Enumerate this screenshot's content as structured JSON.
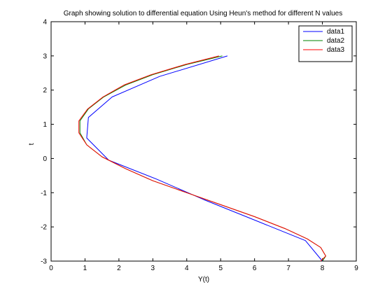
{
  "chart_data": {
    "type": "line",
    "title": "Graph showing solution to differential equation Using Heun's method for different N values",
    "xlabel": "Y(t)",
    "ylabel": "t",
    "xlim": [
      0,
      9
    ],
    "ylim": [
      -3,
      4
    ],
    "xticks": [
      "0",
      "1",
      "2",
      "3",
      "4",
      "5",
      "6",
      "7",
      "8",
      "9"
    ],
    "yticks": [
      "-3",
      "-2",
      "-1",
      "0",
      "1",
      "2",
      "3",
      "4"
    ],
    "grid": false,
    "legend_position": "top-right",
    "series": [
      {
        "name": "data1",
        "color": "#0000ff",
        "points": [
          [
            8.0,
            -3.0
          ],
          [
            7.5,
            -2.4
          ],
          [
            6.0,
            -1.8
          ],
          [
            4.5,
            -1.2
          ],
          [
            3.1,
            -0.6
          ],
          [
            1.7,
            -0.05
          ],
          [
            1.05,
            0.6
          ],
          [
            1.1,
            1.2
          ],
          [
            1.8,
            1.8
          ],
          [
            3.2,
            2.4
          ],
          [
            5.2,
            3.0
          ]
        ]
      },
      {
        "name": "data2",
        "color": "#008000",
        "points": [
          [
            8.0,
            -3.0
          ],
          [
            8.1,
            -2.85
          ],
          [
            7.95,
            -2.6
          ],
          [
            7.55,
            -2.35
          ],
          [
            6.9,
            -2.05
          ],
          [
            6.0,
            -1.7
          ],
          [
            5.0,
            -1.35
          ],
          [
            4.0,
            -1.0
          ],
          [
            3.0,
            -0.65
          ],
          [
            2.2,
            -0.3
          ],
          [
            1.5,
            0.05
          ],
          [
            1.05,
            0.4
          ],
          [
            0.85,
            0.75
          ],
          [
            0.85,
            1.1
          ],
          [
            1.1,
            1.45
          ],
          [
            1.55,
            1.8
          ],
          [
            2.2,
            2.15
          ],
          [
            3.0,
            2.45
          ],
          [
            4.0,
            2.75
          ],
          [
            5.05,
            3.0
          ]
        ]
      },
      {
        "name": "data3",
        "color": "#ff0000",
        "points": [
          [
            7.95,
            -3.0
          ],
          [
            8.1,
            -2.85
          ],
          [
            7.95,
            -2.6
          ],
          [
            7.55,
            -2.35
          ],
          [
            6.9,
            -2.05
          ],
          [
            6.0,
            -1.7
          ],
          [
            5.0,
            -1.35
          ],
          [
            4.0,
            -1.0
          ],
          [
            3.0,
            -0.65
          ],
          [
            2.2,
            -0.3
          ],
          [
            1.5,
            0.05
          ],
          [
            1.05,
            0.4
          ],
          [
            0.82,
            0.75
          ],
          [
            0.82,
            1.1
          ],
          [
            1.08,
            1.45
          ],
          [
            1.53,
            1.8
          ],
          [
            2.15,
            2.15
          ],
          [
            2.95,
            2.45
          ],
          [
            3.95,
            2.75
          ],
          [
            4.95,
            3.0
          ]
        ]
      }
    ]
  }
}
